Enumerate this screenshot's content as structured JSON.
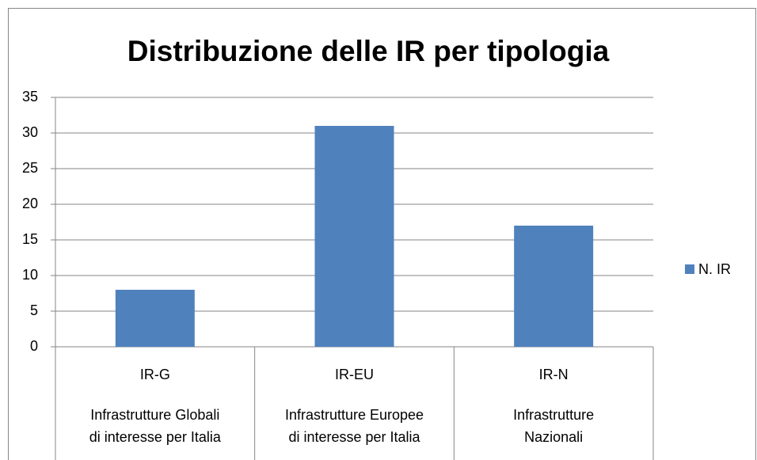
{
  "chart_data": {
    "type": "bar",
    "title": "Distribuzione delle IR per tipologia",
    "categories": [
      "IR-G",
      "IR-EU",
      "IR-N"
    ],
    "category_descriptions": [
      [
        "Infrastrutture Globali",
        "di interesse per Italia"
      ],
      [
        "Infrastrutture Europee",
        "di interesse per Italia"
      ],
      [
        "Infrastrutture",
        "Nazionali"
      ]
    ],
    "series": [
      {
        "name": "N. IR",
        "color": "#4f81bd",
        "values": [
          8,
          31,
          17
        ]
      }
    ],
    "ylim": [
      0,
      35
    ],
    "yticks": [
      0,
      5,
      10,
      15,
      20,
      25,
      30,
      35
    ],
    "grid": true,
    "legend": "right"
  }
}
